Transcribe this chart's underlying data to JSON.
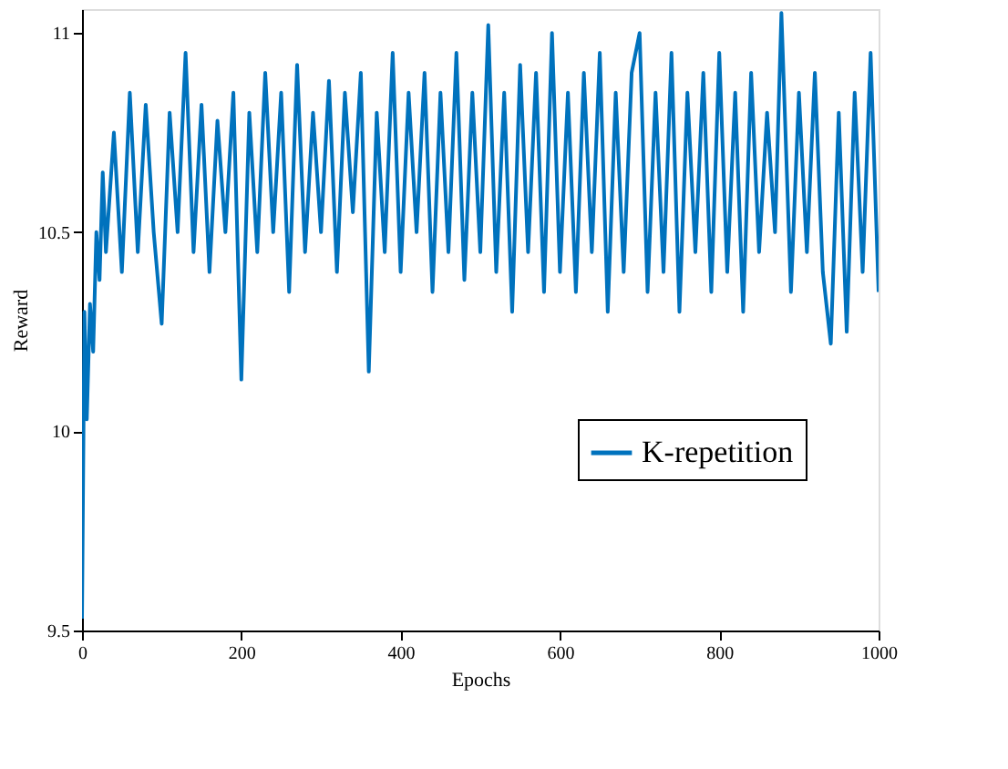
{
  "chart_data": {
    "type": "line",
    "xlabel": "Epochs",
    "ylabel": "Reward",
    "x": [
      0,
      3,
      6,
      10,
      14,
      18,
      22,
      26,
      30,
      40,
      50,
      60,
      70,
      80,
      90,
      100,
      110,
      120,
      130,
      140,
      150,
      160,
      170,
      180,
      190,
      200,
      210,
      220,
      230,
      240,
      250,
      260,
      270,
      280,
      290,
      300,
      310,
      320,
      330,
      340,
      350,
      360,
      370,
      380,
      390,
      400,
      410,
      420,
      430,
      440,
      450,
      460,
      470,
      480,
      490,
      500,
      510,
      520,
      530,
      540,
      550,
      560,
      570,
      580,
      590,
      600,
      610,
      620,
      630,
      640,
      650,
      660,
      670,
      680,
      690,
      700,
      710,
      720,
      730,
      740,
      750,
      760,
      770,
      780,
      790,
      800,
      810,
      820,
      830,
      840,
      850,
      860,
      870,
      878,
      890,
      900,
      910,
      920,
      930,
      940,
      950,
      960,
      970,
      980,
      990,
      1000
    ],
    "series": [
      {
        "name": "K-repetition",
        "color": "#0072bd",
        "values": [
          9.53,
          10.3,
          10.03,
          10.32,
          10.2,
          10.5,
          10.38,
          10.65,
          10.45,
          10.75,
          10.4,
          10.85,
          10.45,
          10.82,
          10.5,
          10.27,
          10.8,
          10.5,
          10.95,
          10.45,
          10.82,
          10.4,
          10.78,
          10.5,
          10.85,
          10.13,
          10.8,
          10.45,
          10.9,
          10.5,
          10.85,
          10.35,
          10.92,
          10.45,
          10.8,
          10.5,
          10.88,
          10.4,
          10.85,
          10.55,
          10.9,
          10.15,
          10.8,
          10.45,
          10.95,
          10.4,
          10.85,
          10.5,
          10.9,
          10.35,
          10.85,
          10.45,
          10.95,
          10.38,
          10.85,
          10.45,
          11.02,
          10.4,
          10.85,
          10.3,
          10.92,
          10.45,
          10.9,
          10.35,
          11.0,
          10.4,
          10.85,
          10.35,
          10.9,
          10.45,
          10.95,
          10.3,
          10.85,
          10.4,
          10.9,
          11.0,
          10.35,
          10.85,
          10.4,
          10.95,
          10.3,
          10.85,
          10.45,
          10.9,
          10.35,
          10.95,
          10.4,
          10.85,
          10.3,
          10.9,
          10.45,
          10.8,
          10.5,
          11.05,
          10.35,
          10.85,
          10.45,
          10.9,
          10.4,
          10.22,
          10.8,
          10.25,
          10.85,
          10.4,
          10.95,
          10.35
        ]
      }
    ],
    "xlim": [
      0,
      1000
    ],
    "xticks": [
      0,
      200,
      400,
      600,
      800,
      1000
    ],
    "ylim": [
      9.5,
      11.06
    ],
    "yticks": [
      9.5,
      10,
      10.5,
      11
    ],
    "grid": false,
    "legend": "right",
    "line_style": "solid",
    "marker": "none"
  }
}
